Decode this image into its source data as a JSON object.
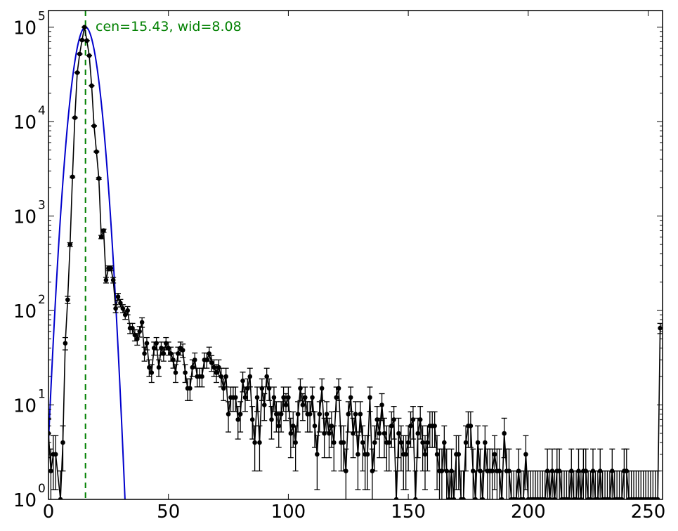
{
  "chart_data": {
    "type": "scatter",
    "title": "",
    "xlabel": "",
    "ylabel": "",
    "xlim": [
      0,
      256
    ],
    "ylim": [
      1,
      150000
    ],
    "y_scale": "log",
    "grid": false,
    "x_ticks": [
      0,
      50,
      100,
      150,
      200,
      250
    ],
    "y_ticks": [
      {
        "value": 1,
        "base": "10",
        "exp": "0"
      },
      {
        "value": 10,
        "base": "10",
        "exp": "1"
      },
      {
        "value": 100,
        "base": "10",
        "exp": "2"
      },
      {
        "value": 1000,
        "base": "10",
        "exp": "3"
      },
      {
        "value": 10000,
        "base": "10",
        "exp": "4"
      },
      {
        "value": 100000,
        "base": "10",
        "exp": "5"
      }
    ],
    "annotation": "cen=15.43, wid=8.08",
    "fit": {
      "center": 15.43,
      "width": 8.08,
      "amplitude": 100000,
      "color": "#0000cc"
    },
    "vline": {
      "x": 15.43,
      "color": "#008000",
      "style": "dashed"
    },
    "series": [
      {
        "color": "#000000",
        "x": [
          0,
          1,
          2,
          3,
          5,
          6,
          7,
          8,
          9,
          10,
          11,
          12,
          13,
          14,
          15,
          16,
          17,
          18,
          19,
          20,
          21,
          22,
          23,
          24,
          25,
          26,
          27,
          28,
          29,
          30,
          31,
          32,
          33,
          34,
          35,
          36,
          37,
          38,
          39,
          40,
          41,
          42,
          43,
          44,
          45,
          46,
          47,
          48,
          49,
          50,
          51,
          52,
          53,
          54,
          55,
          56,
          57,
          58,
          59,
          60,
          61,
          62,
          63,
          64,
          65,
          66,
          67,
          68,
          69,
          70,
          71,
          72,
          73,
          74,
          75,
          76,
          77,
          78,
          79,
          80,
          81,
          82,
          83,
          84,
          85,
          86,
          87,
          88,
          89,
          90,
          91,
          92,
          93,
          94,
          95,
          96,
          97,
          98,
          99,
          100,
          101,
          102,
          103,
          104,
          105,
          106,
          107,
          108,
          109,
          110,
          111,
          112,
          113,
          114,
          115,
          116,
          117,
          118,
          119,
          120,
          121,
          122,
          123,
          124,
          125,
          126,
          127,
          128,
          129,
          130,
          131,
          132,
          133,
          134,
          135,
          136,
          137,
          138,
          139,
          140,
          141,
          142,
          143,
          144,
          145,
          146,
          147,
          148,
          149,
          150,
          151,
          152,
          153,
          154,
          155,
          156,
          157,
          158,
          159,
          160,
          161,
          162,
          163,
          164,
          165,
          166,
          167,
          168,
          169,
          170,
          171,
          172,
          173,
          174,
          175,
          176,
          177,
          178,
          179,
          180,
          181,
          182,
          183,
          184,
          185,
          186,
          187,
          188,
          189,
          190,
          191,
          192,
          193,
          194,
          195,
          196,
          197,
          198,
          199,
          200,
          201,
          202,
          203,
          204,
          205,
          206,
          207,
          208,
          209,
          210,
          211,
          212,
          213,
          214,
          215,
          216,
          217,
          218,
          219,
          220,
          221,
          222,
          223,
          224,
          225,
          226,
          227,
          228,
          229,
          230,
          231,
          232,
          233,
          234,
          235,
          236,
          237,
          238,
          239,
          240,
          241,
          242,
          243,
          244,
          245,
          246,
          247,
          248,
          249,
          250,
          251,
          252,
          253,
          254,
          255
        ],
        "y": [
          5,
          2,
          3,
          3,
          1,
          4,
          45,
          130,
          500,
          2600,
          11000,
          33000,
          52000,
          73000,
          100000,
          72000,
          50000,
          24000,
          9000,
          4800,
          2500,
          600,
          700,
          210,
          280,
          280,
          210,
          105,
          140,
          120,
          105,
          90,
          100,
          65,
          65,
          55,
          50,
          60,
          75,
          35,
          45,
          25,
          22,
          40,
          45,
          25,
          40,
          35,
          45,
          40,
          35,
          30,
          22,
          35,
          40,
          38,
          22,
          15,
          15,
          25,
          30,
          20,
          20,
          20,
          30,
          30,
          35,
          28,
          25,
          22,
          25,
          20,
          15,
          20,
          8,
          12,
          12,
          12,
          7,
          8,
          18,
          12,
          15,
          20,
          7,
          4,
          12,
          4,
          15,
          10,
          20,
          15,
          7,
          12,
          8,
          6,
          8,
          12,
          10,
          12,
          5,
          6,
          4,
          8,
          15,
          10,
          12,
          8,
          8,
          12,
          6,
          3,
          8,
          15,
          5,
          8,
          5,
          6,
          4,
          12,
          15,
          4,
          4,
          2,
          8,
          12,
          5,
          8,
          3,
          8,
          4,
          3,
          3,
          12,
          2,
          4,
          7,
          5,
          10,
          5,
          4,
          4,
          6,
          7,
          1,
          5,
          4,
          3,
          3,
          4,
          6,
          7,
          1,
          5,
          7,
          4,
          3,
          4,
          6,
          6,
          6,
          3,
          2,
          2,
          4,
          2,
          1,
          2,
          1,
          3,
          3,
          1,
          1,
          4,
          6,
          6,
          2,
          1,
          4,
          2,
          1,
          4,
          2,
          2,
          2,
          3,
          2,
          2,
          1,
          5,
          2,
          2,
          1,
          1,
          1,
          2,
          1,
          1,
          3,
          1,
          1,
          1,
          1,
          1,
          1,
          1,
          1,
          2,
          1,
          2,
          1,
          2,
          2,
          1,
          1,
          1,
          1,
          2,
          1,
          1,
          2,
          1,
          2,
          2,
          1,
          1,
          2,
          1,
          1,
          2,
          1,
          1,
          1,
          1,
          2,
          1,
          1,
          1,
          1,
          2,
          2,
          1,
          1,
          1,
          1,
          1,
          1,
          1,
          1,
          1,
          1,
          1,
          1,
          1,
          65
        ]
      }
    ]
  }
}
